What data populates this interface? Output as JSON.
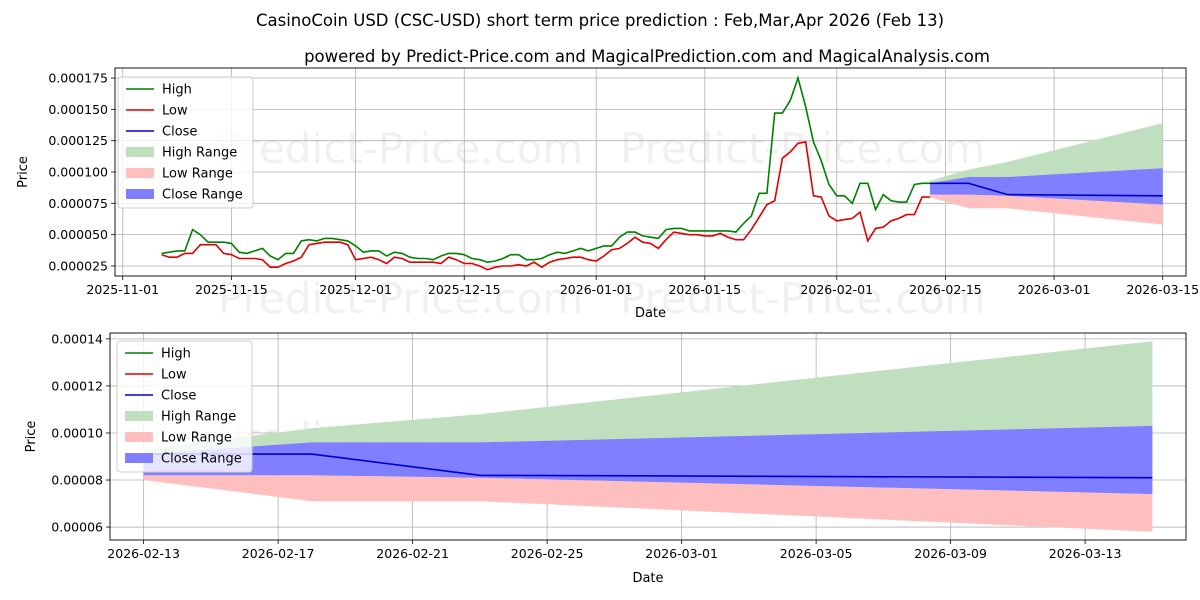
{
  "header": {
    "title": "CasinoCoin USD (CSC-USD) short term price prediction : Feb,Mar,Apr 2026 (Feb 13)",
    "subtitle": "powered by Predict-Price.com and MagicalPrediction.com and MagicalAnalysis.com"
  },
  "watermark": {
    "text": "Predict-Price.com"
  },
  "colors": {
    "high": "#008000",
    "low": "#dd0000",
    "close": "#0000cc",
    "high_range": "#bfdfbf",
    "low_range": "#ffbfbf",
    "close_range": "#7f7fff"
  },
  "legend": {
    "labels": [
      "High",
      "Low",
      "Close",
      "High Range",
      "Low Range",
      "Close Range"
    ]
  },
  "chart_data": [
    {
      "type": "line",
      "xlabel": "Date",
      "ylabel": "Price",
      "xlim": [
        "2025-10-31",
        "2026-03-18"
      ],
      "ylim": [
        1.7e-05,
        0.000183
      ],
      "grid": true,
      "legend_position": "top-left",
      "x_ticks": [
        "2025-11-01",
        "2025-11-15",
        "2025-12-01",
        "2025-12-15",
        "2026-01-01",
        "2026-01-15",
        "2026-02-01",
        "2026-02-15",
        "2026-03-01",
        "2026-03-15"
      ],
      "y_ticks": [
        "0.000025",
        "0.000050",
        "0.000075",
        "0.000100",
        "0.000125",
        "0.000150",
        "0.000175"
      ],
      "x_start": "2025-11-06",
      "high": [
        3.5e-05,
        3.6e-05,
        3.7e-05,
        3.7e-05,
        5.4e-05,
        5e-05,
        4.4e-05,
        4.4e-05,
        4.4e-05,
        4.3e-05,
        3.6e-05,
        3.5e-05,
        3.7e-05,
        3.9e-05,
        3.3e-05,
        3e-05,
        3.5e-05,
        3.5e-05,
        4.5e-05,
        4.6e-05,
        4.5e-05,
        4.7e-05,
        4.7e-05,
        4.6e-05,
        4.5e-05,
        4.1e-05,
        3.6e-05,
        3.7e-05,
        3.7e-05,
        3.3e-05,
        3.6e-05,
        3.5e-05,
        3.2e-05,
        3.1e-05,
        3.1e-05,
        3e-05,
        3.3e-05,
        3.5e-05,
        3.5e-05,
        3.4e-05,
        3.1e-05,
        3e-05,
        2.8e-05,
        2.9e-05,
        3.1e-05,
        3.4e-05,
        3.4e-05,
        3e-05,
        3e-05,
        3.1e-05,
        3.4e-05,
        3.6e-05,
        3.5e-05,
        3.7e-05,
        3.9e-05,
        3.7e-05,
        3.9e-05,
        4.1e-05,
        4.1e-05,
        4.8e-05,
        5.2e-05,
        5.2e-05,
        4.9e-05,
        4.8e-05,
        4.7e-05,
        5.4e-05,
        5.5e-05,
        5.5e-05,
        5.3e-05,
        5.3e-05,
        5.3e-05,
        5.3e-05,
        5.3e-05,
        5.3e-05,
        5.2e-05,
        5.9e-05,
        6.5e-05,
        8.3e-05,
        8.3e-05,
        0.000147,
        0.000147,
        0.000157,
        0.000175,
        0.000152,
        0.000124,
        0.000109,
        9e-05,
        8.1e-05,
        8.1e-05,
        7.5e-05,
        9.1e-05,
        9.1e-05,
        7e-05,
        8.2e-05,
        7.7e-05,
        7.6e-05,
        7.6e-05,
        9e-05,
        9.1e-05,
        9.1e-05
      ],
      "low": [
        3.4e-05,
        3.2e-05,
        3.2e-05,
        3.5e-05,
        3.5e-05,
        4.2e-05,
        4.2e-05,
        4.2e-05,
        3.5e-05,
        3.4e-05,
        3.1e-05,
        3.1e-05,
        3.1e-05,
        3e-05,
        2.4e-05,
        2.4e-05,
        2.7e-05,
        2.9e-05,
        3.2e-05,
        4.2e-05,
        4.3e-05,
        4.4e-05,
        4.4e-05,
        4.4e-05,
        4.2e-05,
        3e-05,
        3.1e-05,
        3.2e-05,
        3e-05,
        2.7e-05,
        3.2e-05,
        3.1e-05,
        2.8e-05,
        2.8e-05,
        2.8e-05,
        2.8e-05,
        2.7e-05,
        3.2e-05,
        3e-05,
        2.7e-05,
        2.7e-05,
        2.5e-05,
        2.2e-05,
        2.4e-05,
        2.5e-05,
        2.5e-05,
        2.6e-05,
        2.5e-05,
        2.8e-05,
        2.4e-05,
        2.8e-05,
        3e-05,
        3.1e-05,
        3.2e-05,
        3.2e-05,
        3e-05,
        2.9e-05,
        3.3e-05,
        3.8e-05,
        3.9e-05,
        4.3e-05,
        4.8e-05,
        4.4e-05,
        4.3e-05,
        3.9e-05,
        4.6e-05,
        5.2e-05,
        5.1e-05,
        5e-05,
        5e-05,
        4.9e-05,
        4.9e-05,
        5.1e-05,
        4.8e-05,
        4.6e-05,
        4.6e-05,
        5.4e-05,
        6.4e-05,
        7.4e-05,
        7.7e-05,
        0.000111,
        0.000116,
        0.000123,
        0.000124,
        8.1e-05,
        8e-05,
        6.5e-05,
        6.1e-05,
        6.2e-05,
        6.3e-05,
        6.8e-05,
        4.5e-05,
        5.5e-05,
        5.6e-05,
        6.1e-05,
        6.3e-05,
        6.6e-05,
        6.6e-05,
        8e-05,
        8e-05
      ]
    },
    {
      "type": "area",
      "xlabel": "Date",
      "ylabel": "Price",
      "xlim": [
        "2026-02-12",
        "2026-03-16"
      ],
      "ylim": [
        5.45e-05,
        0.0001425
      ],
      "grid": true,
      "legend_position": "top-left",
      "x_ticks": [
        "2026-02-13",
        "2026-02-17",
        "2026-02-21",
        "2026-02-25",
        "2026-03-01",
        "2026-03-05",
        "2026-03-09",
        "2026-03-13"
      ],
      "y_ticks": [
        "0.00006",
        "0.00008",
        "0.00010",
        "0.00012",
        "0.00014"
      ],
      "x": [
        "2026-02-13",
        "2026-02-18",
        "2026-02-23",
        "2026-03-15"
      ],
      "close": [
        9.1e-05,
        9.1e-05,
        8.2e-05,
        8.1e-05
      ],
      "high_range": {
        "upper": [
          9.3e-05,
          0.000102,
          0.000108,
          0.000139
        ],
        "lower": [
          8.9e-05,
          8.2e-05,
          8.1e-05,
          7.4e-05
        ]
      },
      "low_range": {
        "upper": [
          8.2e-05,
          8.2e-05,
          8.1e-05,
          7.4e-05
        ],
        "lower": [
          8e-05,
          7.1e-05,
          7.1e-05,
          5.8e-05
        ]
      },
      "close_range": {
        "upper": [
          9.1e-05,
          9.6e-05,
          9.6e-05,
          0.000103
        ],
        "lower": [
          8.2e-05,
          8.2e-05,
          8.1e-05,
          7.4e-05
        ]
      }
    }
  ]
}
